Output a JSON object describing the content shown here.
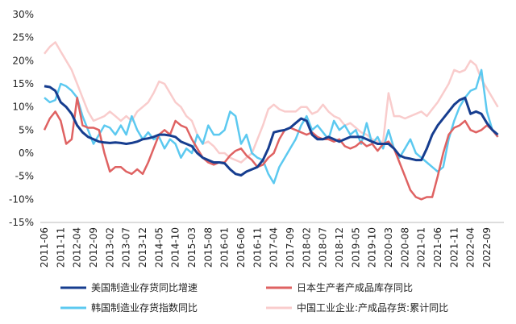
{
  "chart_data": {
    "type": "line",
    "categories": [
      "2011-06",
      null,
      null,
      "2011-11",
      null,
      null,
      "2012-04",
      null,
      null,
      "2012-09",
      null,
      null,
      "2013-02",
      null,
      null,
      "2013-07",
      null,
      null,
      "2013-12",
      null,
      null,
      "2014-05",
      null,
      null,
      "2014-10",
      null,
      null,
      "2015-03",
      null,
      null,
      "2015-08",
      null,
      null,
      "2016-01",
      null,
      null,
      "2016-06",
      null,
      null,
      "2016-11",
      null,
      null,
      "2017-04",
      null,
      null,
      "2017-09",
      null,
      null,
      "2018-02",
      null,
      null,
      "2018-07",
      null,
      null,
      "2018-12",
      null,
      null,
      "2019-05",
      null,
      null,
      "2019-10",
      null,
      null,
      "2020-03",
      null,
      null,
      "2020-08",
      null,
      null,
      "2021-01",
      null,
      null,
      "2021-06",
      null,
      null,
      "2021-11",
      null,
      null,
      "2022-04",
      null,
      null,
      "2022-09",
      null,
      null
    ],
    "series": [
      {
        "name": "中国工业企业:产成品存货:累计同比",
        "color": "#f9cccc",
        "values": [
          21.5,
          23,
          24,
          22,
          20,
          18,
          15,
          12,
          9,
          7,
          7.5,
          8,
          9,
          8,
          7,
          8,
          7,
          9,
          10,
          11,
          13,
          15.5,
          15,
          13,
          11,
          10,
          8,
          7,
          4,
          2,
          2.5,
          1.5,
          0,
          0,
          -1,
          -1.5,
          -2,
          -1,
          0,
          3,
          6,
          9.5,
          10.5,
          9.5,
          9,
          9,
          9,
          10,
          10,
          8.5,
          9,
          10.5,
          9,
          8,
          7.5,
          6,
          6.5,
          5.5,
          4.5,
          4,
          3,
          2.5,
          2.5,
          13,
          8,
          8,
          7.5,
          8,
          8.5,
          9,
          8,
          9.5,
          11,
          13,
          15,
          18,
          17.5,
          18,
          20,
          19,
          16,
          14,
          12,
          10
        ]
      },
      {
        "name": "韩国制造业存货指数同比",
        "color": "#5cc9f0",
        "values": [
          12,
          11,
          11.5,
          15,
          14.5,
          13.5,
          12,
          8,
          5,
          2,
          4,
          6,
          5.5,
          4,
          6,
          4,
          8,
          5,
          3,
          4.5,
          3,
          3.5,
          1,
          3,
          2,
          -1,
          1,
          0,
          4,
          2,
          6,
          4,
          4,
          5,
          9,
          8,
          2,
          4,
          0,
          -1,
          -1.5,
          -4.5,
          -6.5,
          -3,
          -1,
          1,
          3,
          6,
          8,
          5,
          6,
          4.5,
          3,
          7,
          5,
          6,
          4,
          5,
          2,
          6.5,
          2,
          3.5,
          1,
          5,
          1,
          -1,
          1,
          3,
          0,
          -1,
          -2,
          -3,
          -4,
          -3,
          3,
          7,
          10,
          12,
          13.5,
          14,
          18,
          9,
          5,
          3.5
        ]
      },
      {
        "name": "日本生产者产成品库存同比",
        "color": "#df6262",
        "values": [
          5,
          7.5,
          9,
          7,
          2,
          3,
          12,
          6,
          5.5,
          5.5,
          5,
          0,
          -4,
          -3,
          -3,
          -4,
          -4.5,
          -3.5,
          -4.5,
          -2,
          1,
          4,
          5,
          4,
          7,
          6,
          5.5,
          3,
          1,
          -1,
          -2,
          -2.5,
          -2,
          -2,
          -0.5,
          0.5,
          1,
          -0.5,
          -1.5,
          -3,
          -2.5,
          -1,
          0,
          3,
          5,
          5.5,
          5,
          4.5,
          4,
          4.5,
          3.5,
          3,
          3,
          2.5,
          3,
          1.5,
          1,
          1.5,
          2.5,
          1.5,
          2,
          0.5,
          2,
          2.5,
          1,
          -2,
          -5,
          -8,
          -9.5,
          -10,
          -9.5,
          -9.5,
          -5,
          0,
          4,
          5.5,
          6,
          7,
          5,
          4.5,
          5,
          6,
          5,
          3.5
        ]
      },
      {
        "name": "美国制造业存货同比增速",
        "color": "#163d8f",
        "values": [
          14.5,
          14.3,
          13.5,
          11,
          10,
          8.5,
          6,
          4.5,
          3.5,
          3,
          2.5,
          2.3,
          2.2,
          2.3,
          2.2,
          2,
          2.2,
          2.5,
          3,
          3.2,
          3.5,
          4,
          4,
          3.8,
          3.5,
          2.5,
          2,
          1.5,
          0,
          -1,
          -1.5,
          -2,
          -2,
          -2.2,
          -3.5,
          -4.5,
          -4.8,
          -4,
          -3.5,
          -3,
          -1.5,
          1,
          4.5,
          4.8,
          5,
          5.5,
          6.5,
          7.5,
          7,
          4,
          3,
          3,
          3.5,
          3,
          2.5,
          3,
          3.5,
          3.5,
          3.5,
          3,
          2.5,
          2,
          2,
          2,
          1,
          -0.5,
          -1,
          -1.2,
          -1.5,
          -1.5,
          1,
          4,
          6,
          7.5,
          9,
          10.5,
          11.5,
          12,
          8.5,
          9,
          8.5,
          6.5,
          5,
          4
        ]
      }
    ],
    "legend_order": [
      3,
      2,
      1,
      0
    ],
    "ylim": [
      -15,
      30
    ],
    "yticks": [
      {
        "value": -15,
        "label": "-15%"
      },
      {
        "value": -10,
        "label": "-10%"
      },
      {
        "value": -5,
        "label": "-5%"
      },
      {
        "value": 0,
        "label": "0%"
      },
      {
        "value": 5,
        "label": "5%"
      },
      {
        "value": 10,
        "label": "10%"
      },
      {
        "value": 15,
        "label": "15%"
      },
      {
        "value": 20,
        "label": "20%"
      },
      {
        "value": 25,
        "label": "25%"
      },
      {
        "value": 30,
        "label": "30%"
      }
    ],
    "legend": "bottom"
  }
}
